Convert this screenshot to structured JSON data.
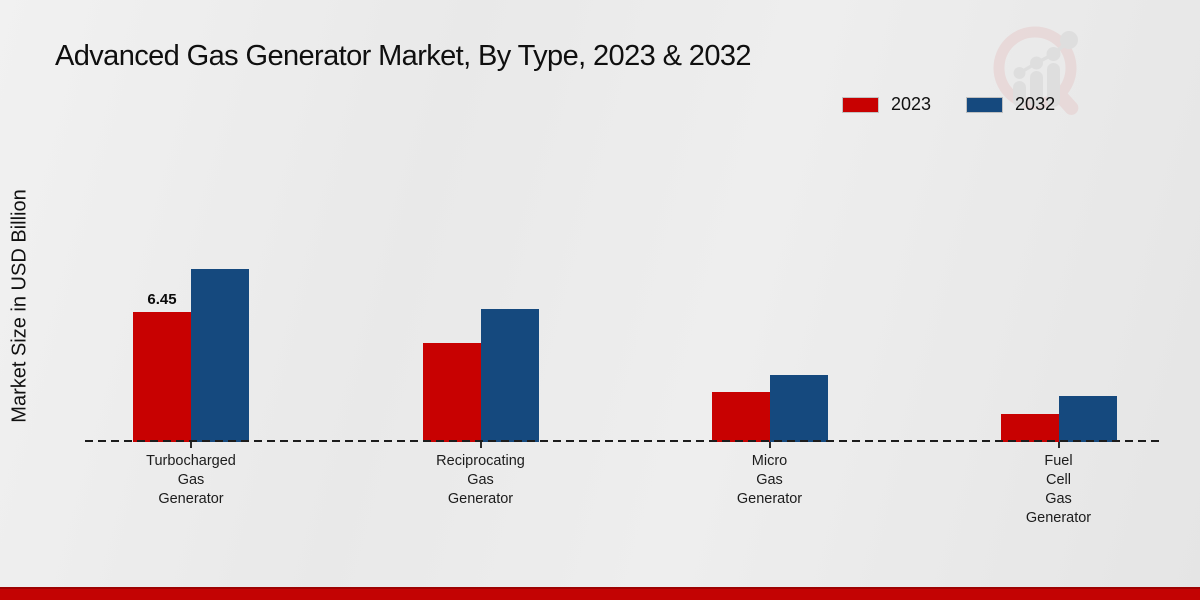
{
  "title": "Advanced Gas Generator Market, By Type, 2023 & 2032",
  "ylabel": "Market Size in USD Billion",
  "legend": [
    {
      "label": "2023",
      "color": "#c80101"
    },
    {
      "label": "2032",
      "color": "#15497e"
    }
  ],
  "colors": {
    "series_2023": "#c80101",
    "series_2032": "#15497e",
    "footer_stripe": "#c30303",
    "baseline": "#1c1c1c"
  },
  "watermark": {
    "name": "market-research-magnifier-logo"
  },
  "chart_data": {
    "type": "bar",
    "title": "Advanced Gas Generator Market, By Type, 2023 & 2032",
    "xlabel": "",
    "ylabel": "Market Size in USD Billion",
    "categories": [
      "Turbocharged Gas Generator",
      "Reciprocating Gas Generator",
      "Micro Gas Generator",
      "Fuel Cell Gas Generator"
    ],
    "category_lines": [
      [
        "Turbocharged",
        "Gas",
        "Generator"
      ],
      [
        "Reciprocating",
        "Gas",
        "Generator"
      ],
      [
        "Micro",
        "Gas",
        "Generator"
      ],
      [
        "Fuel",
        "Cell",
        "Gas",
        "Generator"
      ]
    ],
    "series": [
      {
        "name": "2023",
        "color": "#c80101",
        "values": [
          6.45,
          4.9,
          2.5,
          1.4
        ]
      },
      {
        "name": "2032",
        "color": "#15497e",
        "values": [
          8.6,
          6.6,
          3.3,
          2.3
        ]
      }
    ],
    "data_labels": [
      {
        "series": "2023",
        "category_index": 0,
        "text": "6.45"
      }
    ],
    "ylim": [
      0,
      9.5
    ],
    "grid": false,
    "baseline_style": "dashed",
    "legend_position": "top-right"
  }
}
